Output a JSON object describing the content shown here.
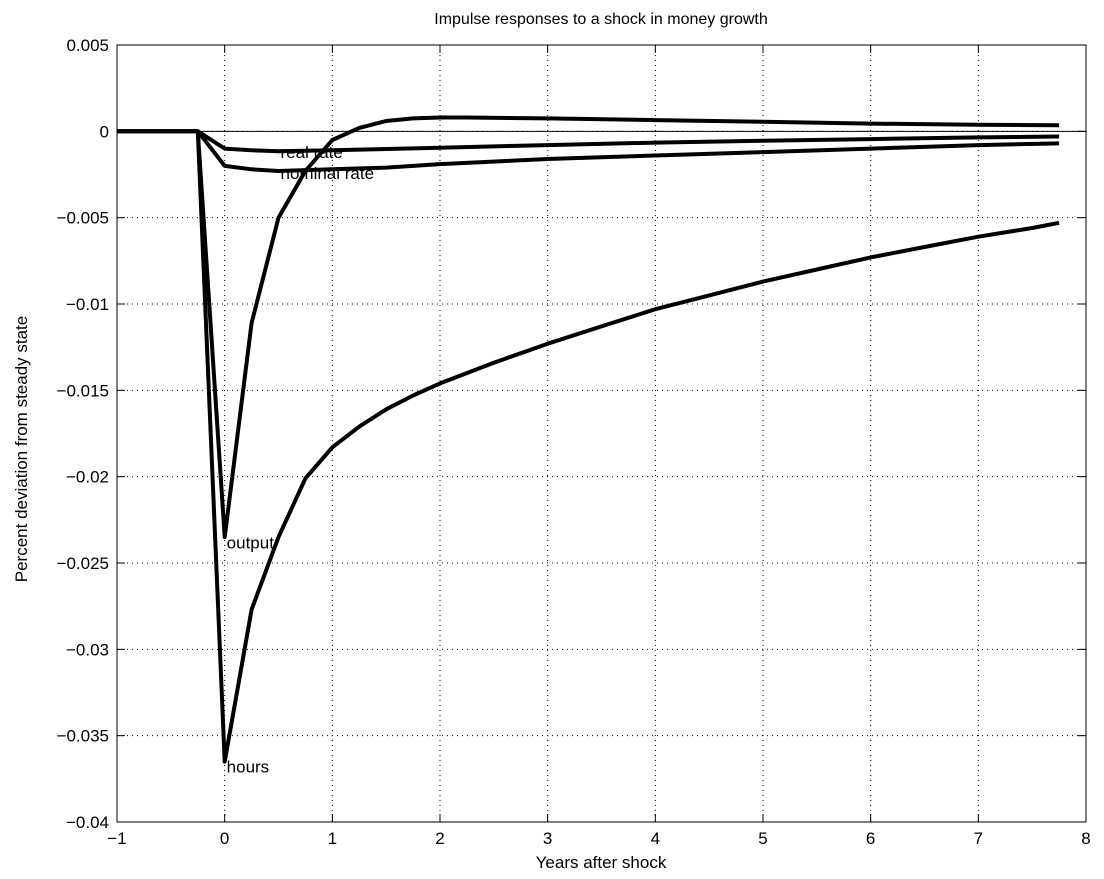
{
  "chart_data": {
    "type": "line",
    "title": "Impulse responses to a shock in money growth",
    "xlabel": "Years after shock",
    "ylabel": "Percent deviation from steady state",
    "xlim": [
      -1,
      8
    ],
    "ylim": [
      -0.04,
      0.005
    ],
    "xticks": [
      -1,
      0,
      1,
      2,
      3,
      4,
      5,
      6,
      7,
      8
    ],
    "yticks": [
      0.005,
      0,
      -0.005,
      -0.01,
      -0.015,
      -0.02,
      -0.025,
      -0.03,
      -0.035,
      -0.04
    ],
    "xtick_labels": [
      "−1",
      "0",
      "1",
      "2",
      "3",
      "4",
      "5",
      "6",
      "7",
      "8"
    ],
    "ytick_labels": [
      "0.005",
      "0",
      "−0.005",
      "−0.01",
      "−0.015",
      "−0.02",
      "−0.025",
      "−0.03",
      "−0.035",
      "−0.04"
    ],
    "grid": true,
    "zero_line": true,
    "line_color": "#000000",
    "series": [
      {
        "name": "real rate",
        "label_at": [
          0.5,
          -0.0012
        ],
        "x": [
          -1,
          -0.25,
          0,
          0.25,
          0.5,
          1,
          2,
          3,
          4,
          5,
          6,
          7,
          7.75
        ],
        "y": [
          0,
          0,
          -0.001,
          -0.0011,
          -0.00115,
          -0.0011,
          -0.00095,
          -0.0008,
          -0.00065,
          -0.00055,
          -0.00045,
          -0.00035,
          -0.0003
        ]
      },
      {
        "name": "nominal rate",
        "label_at": [
          0.5,
          -0.0024
        ],
        "x": [
          -1,
          -0.25,
          0,
          0.25,
          0.5,
          1,
          1.5,
          2,
          3,
          4,
          5,
          6,
          7,
          7.75
        ],
        "y": [
          0,
          0,
          -0.002,
          -0.0022,
          -0.0023,
          -0.0022,
          -0.0021,
          -0.0019,
          -0.0016,
          -0.0014,
          -0.0012,
          -0.001,
          -0.0008,
          -0.0007
        ]
      },
      {
        "name": "output",
        "label_at": [
          0,
          -0.0238
        ],
        "x": [
          -1,
          -0.25,
          0,
          0.25,
          0.5,
          0.75,
          1,
          1.25,
          1.5,
          1.75,
          2,
          2.25,
          3,
          4,
          5,
          6,
          7,
          7.75
        ],
        "y": [
          0,
          0,
          -0.0235,
          -0.0111,
          -0.005,
          -0.0023,
          -0.0005,
          0.0002,
          0.0006,
          0.00075,
          0.0008,
          0.0008,
          0.00075,
          0.00065,
          0.00055,
          0.00045,
          0.00038,
          0.00035
        ]
      },
      {
        "name": "hours",
        "label_at": [
          0,
          -0.0368
        ],
        "x": [
          -1,
          -0.25,
          0,
          0.25,
          0.5,
          0.75,
          1,
          1.25,
          1.5,
          1.75,
          2,
          2.5,
          3,
          3.5,
          4,
          4.5,
          5,
          5.5,
          6,
          6.5,
          7,
          7.5,
          7.75
        ],
        "y": [
          0,
          0,
          -0.0365,
          -0.0277,
          -0.0235,
          -0.0201,
          -0.0183,
          -0.0171,
          -0.0161,
          -0.0153,
          -0.0146,
          -0.0134,
          -0.0123,
          -0.0113,
          -0.0103,
          -0.0095,
          -0.0087,
          -0.008,
          -0.0073,
          -0.0067,
          -0.0061,
          -0.0056,
          -0.0053
        ]
      }
    ]
  }
}
